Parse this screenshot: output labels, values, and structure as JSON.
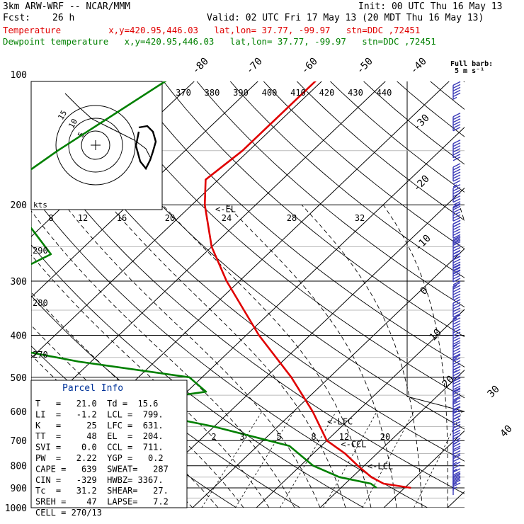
{
  "header": {
    "model": "3km ARW-WRF -- NCAR/MMM",
    "init": "Init: 00 UTC Thu 16 May 13",
    "fcst_label": "Fcst:",
    "fcst_value": "26 h",
    "valid": "Valid: 02 UTC Fri 17 May 13 (20 MDT Thu 16 May 13)",
    "temp_line": "Temperature         x,y=420.95,446.03   lat,lon= 37.77, -99.97   stn=DDC ,72451",
    "dew_line": "Dewpoint temperature   x,y=420.95,446.03   lat,lon= 37.77, -99.97   stn=DDC ,72451"
  },
  "colors": {
    "temperature": "#e00000",
    "dewpoint": "#008000",
    "barbs": "#3a3ab8",
    "panel_title": "#003399"
  },
  "chart_data": {
    "type": "line",
    "pressure_levels": [
      100,
      200,
      300,
      400,
      500,
      600,
      700,
      800,
      900,
      1000
    ],
    "isotherm_labels": [
      "-80",
      "-70",
      "-60",
      "-50",
      "-40",
      "-30",
      "-20",
      "-10",
      "0",
      "10",
      "20",
      "30",
      "40"
    ],
    "theta_labels": [
      "370",
      "380",
      "390",
      "400",
      "410",
      "420",
      "430",
      "440"
    ],
    "theta_e_labels": [
      "290",
      "280",
      "270"
    ],
    "mixing_ratio_labels": [
      "2",
      "3",
      "5",
      "8",
      "12",
      "20"
    ],
    "wind_scale_labels": [
      "8",
      "12",
      "16",
      "20",
      "24",
      "28",
      "32"
    ],
    "hodograph_label": "kts",
    "hodograph_ring_labels": [
      "5",
      "10",
      "15"
    ],
    "barb_legend": {
      "line1": "Full barb:",
      "line2": "5 m s⁻¹"
    },
    "level_markers": [
      {
        "label": "<-EL",
        "pressure": 204
      },
      {
        "label": "<-LFC",
        "pressure": 631
      },
      {
        "label": "<-CCL",
        "pressure": 711
      },
      {
        "label": "<-LCL",
        "pressure": 799
      }
    ],
    "series": [
      {
        "name": "Temperature",
        "points": [
          {
            "p": 100,
            "t": -61
          },
          {
            "p": 150,
            "t": -61
          },
          {
            "p": 175,
            "t": -62
          },
          {
            "p": 200,
            "t": -58
          },
          {
            "p": 250,
            "t": -50
          },
          {
            "p": 300,
            "t": -42
          },
          {
            "p": 400,
            "t": -28
          },
          {
            "p": 500,
            "t": -16
          },
          {
            "p": 600,
            "t": -7
          },
          {
            "p": 700,
            "t": 0
          },
          {
            "p": 750,
            "t": 5
          },
          {
            "p": 800,
            "t": 9
          },
          {
            "p": 850,
            "t": 13
          },
          {
            "p": 880,
            "t": 16
          },
          {
            "p": 900,
            "t": 21
          }
        ]
      },
      {
        "name": "Dewpoint temperature",
        "points": [
          {
            "p": 100,
            "t": -84
          },
          {
            "p": 150,
            "t": -90
          },
          {
            "p": 180,
            "t": -92
          },
          {
            "p": 200,
            "t": -88
          },
          {
            "p": 260,
            "t": -74
          },
          {
            "p": 300,
            "t": -78
          },
          {
            "p": 350,
            "t": -86
          },
          {
            "p": 400,
            "t": -78
          },
          {
            "p": 460,
            "t": -52
          },
          {
            "p": 500,
            "t": -32
          },
          {
            "p": 540,
            "t": -27
          },
          {
            "p": 580,
            "t": -40
          },
          {
            "p": 650,
            "t": -20
          },
          {
            "p": 720,
            "t": -5
          },
          {
            "p": 800,
            "t": 2
          },
          {
            "p": 850,
            "t": 8
          },
          {
            "p": 880,
            "t": 14
          },
          {
            "p": 900,
            "t": 15.6
          }
        ]
      }
    ],
    "wind_barbs": [
      {
        "p": 110,
        "speed_kt": 55
      },
      {
        "p": 130,
        "speed_kt": 60
      },
      {
        "p": 150,
        "speed_kt": 70
      },
      {
        "p": 170,
        "speed_kt": 75
      },
      {
        "p": 190,
        "speed_kt": 80
      },
      {
        "p": 210,
        "speed_kt": 80
      },
      {
        "p": 230,
        "speed_kt": 80
      },
      {
        "p": 250,
        "speed_kt": 80
      },
      {
        "p": 270,
        "speed_kt": 80
      },
      {
        "p": 290,
        "speed_kt": 75
      },
      {
        "p": 320,
        "speed_kt": 70
      },
      {
        "p": 350,
        "speed_kt": 65
      },
      {
        "p": 380,
        "speed_kt": 60
      },
      {
        "p": 410,
        "speed_kt": 55
      },
      {
        "p": 440,
        "speed_kt": 55
      },
      {
        "p": 470,
        "speed_kt": 55
      },
      {
        "p": 500,
        "speed_kt": 50
      },
      {
        "p": 530,
        "speed_kt": 50
      },
      {
        "p": 560,
        "speed_kt": 45
      },
      {
        "p": 590,
        "speed_kt": 45
      },
      {
        "p": 620,
        "speed_kt": 40
      },
      {
        "p": 650,
        "speed_kt": 40
      },
      {
        "p": 680,
        "speed_kt": 35
      },
      {
        "p": 710,
        "speed_kt": 35
      },
      {
        "p": 740,
        "speed_kt": 30
      },
      {
        "p": 770,
        "speed_kt": 30
      },
      {
        "p": 800,
        "speed_kt": 25
      },
      {
        "p": 830,
        "speed_kt": 25
      },
      {
        "p": 860,
        "speed_kt": 30
      },
      {
        "p": 880,
        "speed_kt": 35
      },
      {
        "p": 900,
        "speed_kt": 35
      }
    ]
  },
  "parcel_info": {
    "title": "Parcel Info",
    "rows": [
      "T   =   21.0  Td =  15.6",
      "LI  =   -1.2  LCL =  799.",
      "K   =     25  LFC =  631.",
      "TT  =     48  EL  =  204.",
      "SVI =    0.0  CCL =  711.",
      "PW  =   2.22  YGP =   0.2",
      "CAPE =   639  SWEAT=   287",
      "CIN =   -329  HWBZ= 3367.",
      "Tc  =   31.2  SHEAR=   27.",
      "SREH =    47  LAPSE=   7.2",
      "CELL = 270/13"
    ]
  }
}
